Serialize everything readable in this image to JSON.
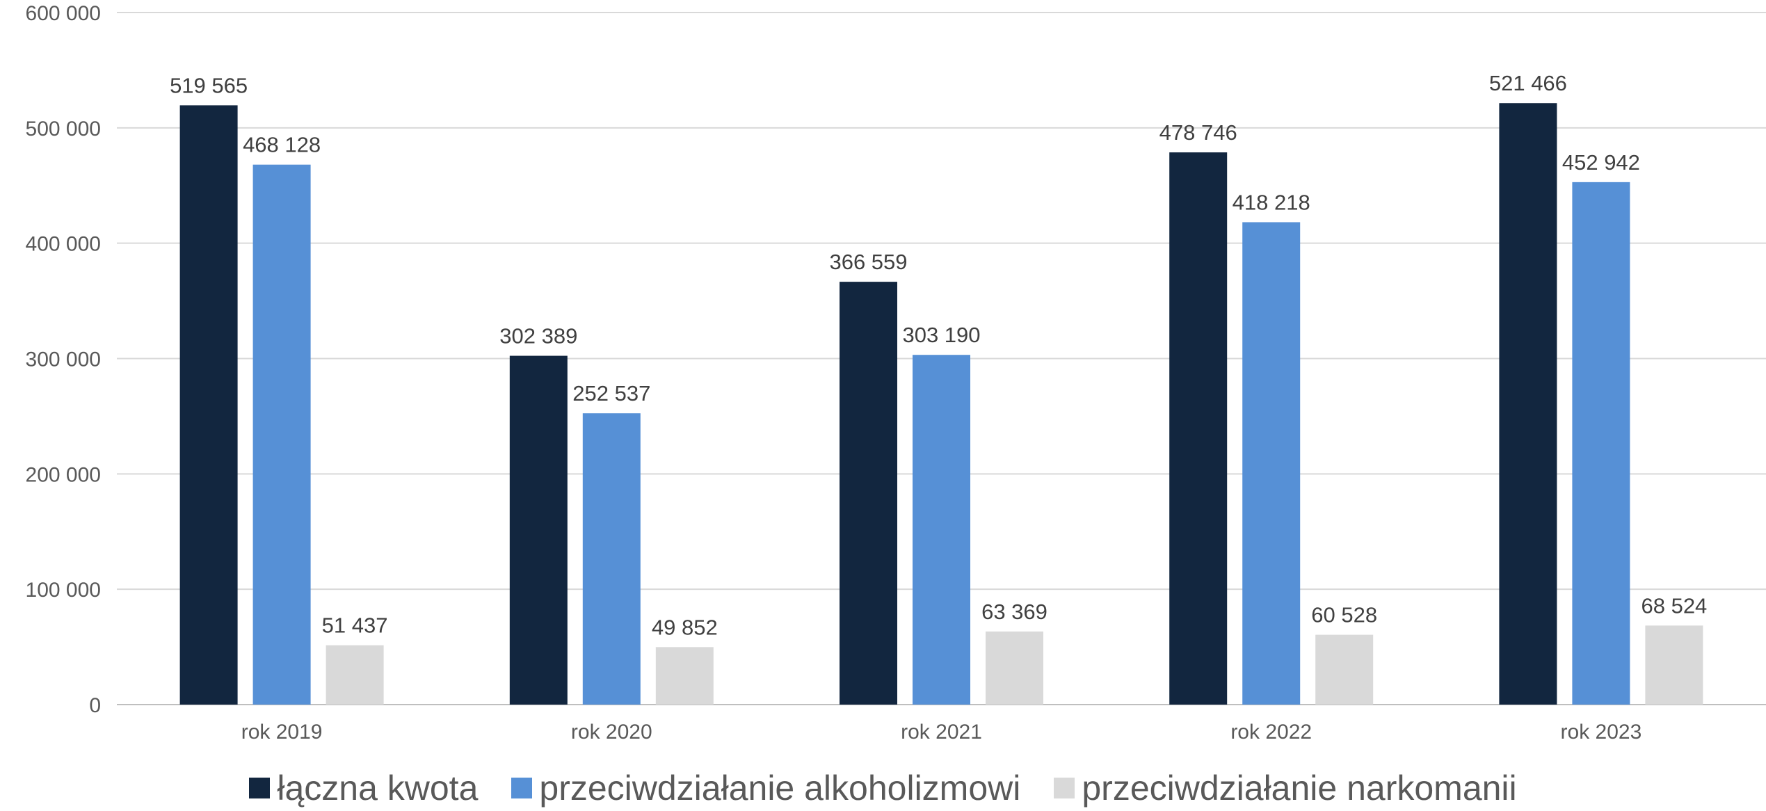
{
  "chart_data": {
    "type": "bar",
    "categories": [
      "rok 2019",
      "rok 2020",
      "rok 2021",
      "rok 2022",
      "rok 2023"
    ],
    "series": [
      {
        "name": "łączna kwota",
        "color": "#12263f",
        "values": [
          519565,
          302389,
          366559,
          478746,
          521466
        ],
        "labels": [
          "519 565",
          "302 389",
          "366 559",
          "478 746",
          "521 466"
        ]
      },
      {
        "name": "przeciwdziałanie alkoholizmowi",
        "color": "#5690d6",
        "values": [
          468128,
          252537,
          303190,
          418218,
          452942
        ],
        "labels": [
          "468 128",
          "252 537",
          "303 190",
          "418 218",
          "452 942"
        ]
      },
      {
        "name": "przeciwdziałanie narkomanii",
        "color": "#d9d9d9",
        "values": [
          51437,
          49852,
          63369,
          60528,
          68524
        ],
        "labels": [
          "51 437",
          "49 852",
          "63 369",
          "60 528",
          "68 524"
        ]
      }
    ],
    "ylim": [
      0,
      600000
    ],
    "yticks": [
      0,
      100000,
      200000,
      300000,
      400000,
      500000,
      600000
    ],
    "ytick_labels": [
      "0",
      "100 000",
      "200 000",
      "300 000",
      "400 000",
      "500 000",
      "600 000"
    ],
    "grid": true,
    "legend_position": "bottom",
    "title": "",
    "xlabel": "",
    "ylabel": ""
  }
}
